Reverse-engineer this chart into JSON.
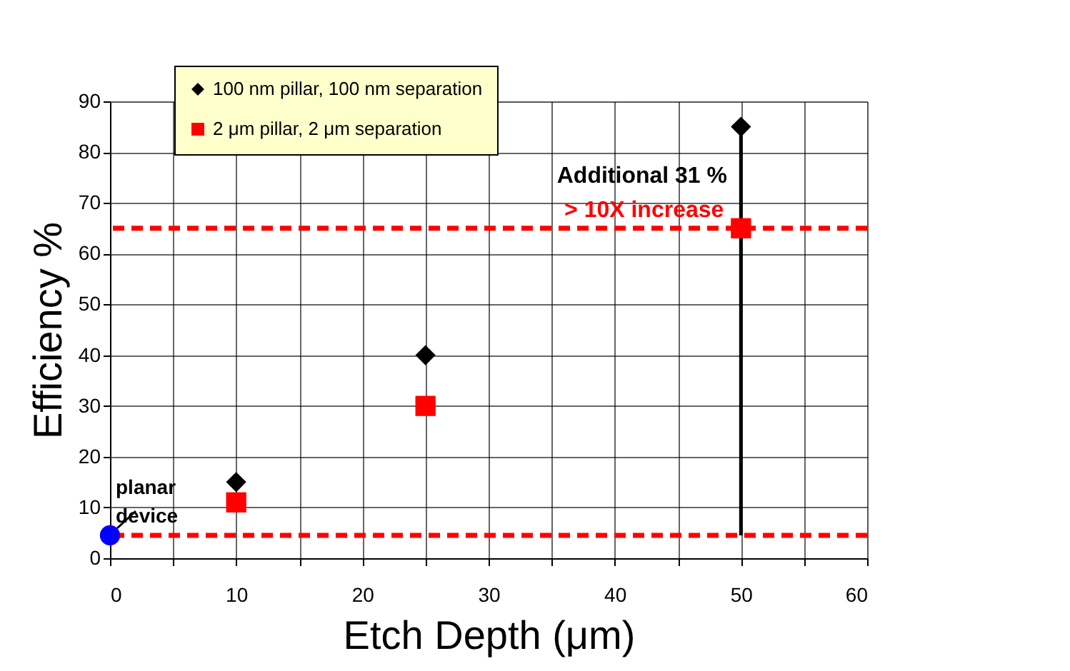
{
  "chart_data": {
    "type": "scatter",
    "xlabel": "Etch Depth (μm)",
    "ylabel": "Efficiency %",
    "series": [
      {
        "name": "100 nm pillar, 100 nm separation",
        "color": "#000000",
        "marker": "diamond",
        "x": [
          10,
          25,
          50
        ],
        "values": [
          15,
          40,
          85
        ]
      },
      {
        "name": "2 μm pillar, 2 μm separation",
        "color": "#ff0000",
        "marker": "square",
        "x": [
          10,
          25,
          50
        ],
        "values": [
          11,
          30,
          65
        ]
      },
      {
        "color": "#0000ff",
        "marker": "circle",
        "x": [
          0
        ],
        "values": [
          4.5
        ]
      }
    ],
    "xlim": [
      0,
      60
    ],
    "ylim": [
      0,
      90
    ],
    "xticks": [
      0,
      {
        "value": 5,
        "label": null
      },
      10,
      {
        "value": 15,
        "label": null
      },
      20,
      {
        "value": 25,
        "label": null
      },
      30,
      {
        "value": 35,
        "label": null
      },
      40,
      {
        "value": 45,
        "label": null
      },
      50,
      {
        "value": 55,
        "label": null
      },
      60
    ],
    "yticks": [
      0,
      10,
      20,
      30,
      40,
      50,
      60,
      70,
      80,
      90
    ],
    "grid": true,
    "legend": "top left",
    "ref_lines": [
      {
        "axis": "y",
        "value": 65,
        "label": "> 10X increase",
        "color": "#ff0000",
        "line_style": "dashed"
      },
      {
        "axis": "y",
        "value": 4.5,
        "color": "#ff0000",
        "line_style": "dashed"
      }
    ],
    "annotations": [
      {
        "text": "planar device",
        "x": 0,
        "y": 4.5
      },
      "Additional 31 %"
    ]
  }
}
